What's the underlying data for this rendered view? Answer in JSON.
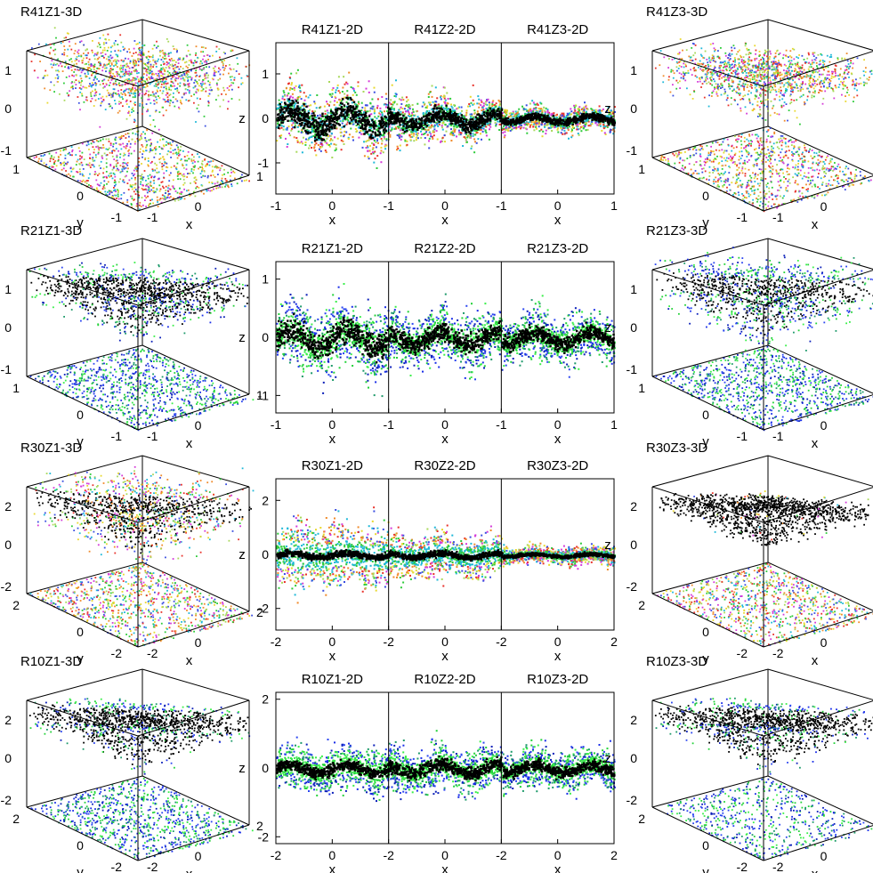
{
  "figure": {
    "background": "#ffffff",
    "palettes": {
      "warm": [
        "#e8322b",
        "#f08a2a",
        "#e8d82e",
        "#2ecb3a",
        "#1fb8d8",
        "#3a4ee0",
        "#d43ad8",
        "#a8d85a"
      ],
      "blue_green": [
        "#1a2ee8",
        "#2b46f0",
        "#24d23a",
        "#3aef4a",
        "#0b1fb8",
        "#1d9a6a"
      ],
      "core": "#000000",
      "highlight": "#ff2a1a"
    }
  },
  "chart_data": [
    {
      "id": "R41Z1-3D",
      "type": "scatter-3d",
      "title": "R41Z1-3D",
      "palette": "warm",
      "xlabel": "x",
      "ylabel": "y",
      "zlabel": "z",
      "x_ticks": [
        "-1",
        "0",
        "1"
      ],
      "y_ticks": [
        "-1",
        "0",
        "1"
      ],
      "z_ticks": [
        "-1",
        "0",
        "1"
      ],
      "sheet": {
        "amp": 0.45,
        "spread": 0.55,
        "core": false
      },
      "floor_dense": true
    },
    {
      "id": "R41-2D",
      "type": "scatter",
      "titles": [
        "R41Z1-2D",
        "R41Z2-2D",
        "R41Z3-2D"
      ],
      "palette": "warm",
      "xlabel": "x",
      "ylabel": "z",
      "x_ticks": [
        "-1",
        "0",
        "-1",
        "0",
        "-1",
        "0",
        "1"
      ],
      "y_ticks": [
        "1",
        "0",
        "-1"
      ],
      "ylim": [
        -1.7,
        1.7
      ],
      "bands": [
        {
          "spread": 0.75,
          "core": 0.25
        },
        {
          "spread": 0.55,
          "core": 0.15
        },
        {
          "spread": 0.3,
          "core": 0.08
        }
      ]
    },
    {
      "id": "R41Z3-3D",
      "type": "scatter-3d",
      "title": "R41Z3-3D",
      "palette": "warm",
      "xlabel": "x",
      "ylabel": "y",
      "zlabel": "z",
      "x_ticks": [
        "-1",
        "0",
        "1"
      ],
      "y_ticks": [
        "-1",
        "0",
        "1"
      ],
      "z_ticks": [
        "-1",
        "0",
        "1"
      ],
      "sheet": {
        "amp": 0.35,
        "spread": 0.4,
        "core": false
      },
      "floor_dense": true
    },
    {
      "id": "R21Z1-3D",
      "type": "scatter-3d",
      "title": "R21Z1-3D",
      "palette": "blue_green",
      "xlabel": "x",
      "ylabel": "y",
      "zlabel": "z",
      "x_ticks": [
        "-1",
        "0",
        "1"
      ],
      "y_ticks": [
        "-1",
        "0",
        "1"
      ],
      "z_ticks": [
        "-1",
        "0",
        "1"
      ],
      "sheet": {
        "amp": 0.35,
        "spread": 0.4,
        "core": true
      },
      "floor_dense": true
    },
    {
      "id": "R21-2D",
      "type": "scatter",
      "titles": [
        "R21Z1-2D",
        "R21Z2-2D",
        "R21Z3-2D"
      ],
      "palette": "blue_green",
      "xlabel": "x",
      "ylabel": "z",
      "x_ticks": [
        "-1",
        "0",
        "-1",
        "0",
        "-1",
        "0",
        "1"
      ],
      "y_ticks": [
        "1",
        "0",
        "-1"
      ],
      "ylim": [
        -1.3,
        1.3
      ],
      "bands": [
        {
          "spread": 0.6,
          "core": 0.2
        },
        {
          "spread": 0.5,
          "core": 0.15
        },
        {
          "spread": 0.45,
          "core": 0.12
        }
      ]
    },
    {
      "id": "R21Z3-3D",
      "type": "scatter-3d",
      "title": "R21Z3-3D",
      "palette": "blue_green",
      "xlabel": "x",
      "ylabel": "y",
      "zlabel": "z",
      "x_ticks": [
        "-1",
        "0",
        "1"
      ],
      "y_ticks": [
        "-1",
        "0",
        "1"
      ],
      "z_ticks": [
        "-1",
        "0",
        "1"
      ],
      "sheet": {
        "amp": 0.45,
        "spread": 0.55,
        "core": true
      },
      "floor_dense": true
    },
    {
      "id": "R30Z1-3D",
      "type": "scatter-3d",
      "title": "R30Z1-3D",
      "palette": "warm",
      "xlabel": "x",
      "ylabel": "y",
      "zlabel": "z",
      "x_ticks": [
        "-2",
        "0",
        "2"
      ],
      "y_ticks": [
        "-2",
        "0",
        "2"
      ],
      "z_ticks": [
        "-2",
        "0",
        "2"
      ],
      "sheet": {
        "amp": 0.4,
        "spread": 0.55,
        "core": true
      },
      "floor_dense": true
    },
    {
      "id": "R30-2D",
      "type": "scatter",
      "titles": [
        "R30Z1-2D",
        "R30Z2-2D",
        "R30Z3-2D"
      ],
      "palette": "warm",
      "xlabel": "x",
      "ylabel": "z",
      "x_ticks": [
        "-2",
        "0",
        "-2",
        "0",
        "-2",
        "0",
        "2"
      ],
      "y_ticks": [
        "2",
        "0",
        "-2"
      ],
      "ylim": [
        -2.8,
        2.8
      ],
      "bands": [
        {
          "spread": 1.3,
          "core": 0.1
        },
        {
          "spread": 0.9,
          "core": 0.1
        },
        {
          "spread": 0.35,
          "core": 0.06
        }
      ]
    },
    {
      "id": "R30Z3-3D",
      "type": "scatter-3d",
      "title": "R30Z3-3D",
      "palette": "warm",
      "xlabel": "x",
      "ylabel": "y",
      "zlabel": "z",
      "x_ticks": [
        "-2",
        "0",
        "2"
      ],
      "y_ticks": [
        "-2",
        "0",
        "2"
      ],
      "z_ticks": [
        "-2",
        "0",
        "2"
      ],
      "sheet": {
        "amp": 0.3,
        "spread": 0.18,
        "core": true
      },
      "floor_dense": true
    },
    {
      "id": "R10Z1-3D",
      "type": "scatter-3d",
      "title": "R10Z1-3D",
      "palette": "blue_green",
      "xlabel": "x",
      "ylabel": "y",
      "zlabel": "z",
      "x_ticks": [
        "-2",
        "0",
        "2"
      ],
      "y_ticks": [
        "-2",
        "0",
        "2"
      ],
      "z_ticks": [
        "-2",
        "0",
        "2"
      ],
      "sheet": {
        "amp": 0.4,
        "spread": 0.3,
        "core": true
      },
      "floor_dense": true
    },
    {
      "id": "R10-2D",
      "type": "scatter",
      "titles": [
        "R10Z1-2D",
        "R10Z2-2D",
        "R10Z3-2D"
      ],
      "palette": "blue_green",
      "xlabel": "x",
      "ylabel": "z",
      "x_ticks": [
        "-2",
        "0",
        "-2",
        "0",
        "-2",
        "0",
        "2"
      ],
      "y_ticks": [
        "2",
        "0",
        "-2"
      ],
      "ylim": [
        -2.2,
        2.2
      ],
      "bands": [
        {
          "spread": 0.7,
          "core": 0.15
        },
        {
          "spread": 0.7,
          "core": 0.18
        },
        {
          "spread": 0.6,
          "core": 0.15
        }
      ]
    },
    {
      "id": "R10Z3-3D",
      "type": "scatter-3d",
      "title": "R10Z3-3D",
      "palette": "blue_green",
      "xlabel": "x",
      "ylabel": "y",
      "zlabel": "z",
      "x_ticks": [
        "-2",
        "0",
        "2"
      ],
      "y_ticks": [
        "-2",
        "0",
        "2"
      ],
      "z_ticks": [
        "-2",
        "0",
        "2"
      ],
      "sheet": {
        "amp": 0.4,
        "spread": 0.3,
        "core": true
      },
      "floor_dense": false
    }
  ]
}
